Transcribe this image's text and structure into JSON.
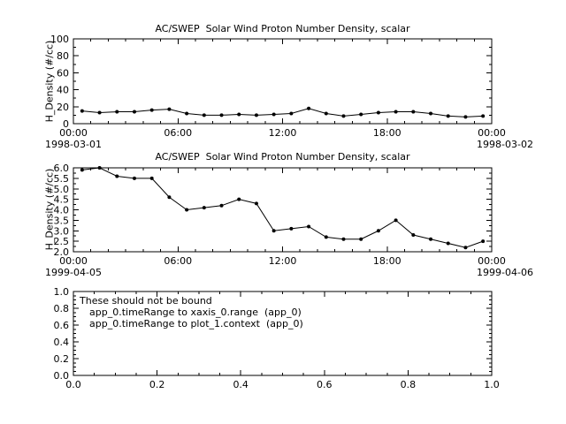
{
  "page": {
    "background": "#ffffff",
    "line_color": "#000000"
  },
  "chart_data": [
    {
      "type": "line",
      "title": "AC/SWEP  Solar Wind Proton Number Density, scalar",
      "ylabel": "H_Density (#/cc)",
      "ylim": [
        0,
        100
      ],
      "yticks": [
        0,
        20,
        40,
        60,
        80,
        100
      ],
      "ytick_labels": [
        "0",
        "20",
        "40",
        "60",
        "80",
        "100"
      ],
      "yminor": 10,
      "xlim": [
        0,
        24
      ],
      "xticks": [
        0,
        6,
        12,
        18,
        24
      ],
      "xtick_labels": [
        "00:00",
        "06:00",
        "12:00",
        "18:00",
        "00:00"
      ],
      "xminor": 1,
      "x_start_date": "1998-03-01",
      "x_end_date": "1998-03-02",
      "marker": "dot",
      "color": "#000000",
      "x": [
        0.5,
        1.5,
        2.5,
        3.5,
        4.5,
        5.5,
        6.5,
        7.5,
        8.5,
        9.5,
        10.5,
        11.5,
        12.5,
        13.5,
        14.5,
        15.5,
        16.5,
        17.5,
        18.5,
        19.5,
        20.5,
        21.5,
        22.5,
        23.5
      ],
      "values": [
        15,
        13,
        14,
        14,
        16,
        17,
        12,
        10,
        10,
        11,
        10,
        11,
        12,
        18,
        12,
        9,
        11,
        13,
        14,
        14,
        12,
        9,
        8,
        9
      ],
      "grid": false,
      "legend": "none"
    },
    {
      "type": "line",
      "title": "AC/SWEP  Solar Wind Proton Number Density, scalar",
      "ylabel": "H_Density (#/cc)",
      "ylim": [
        2.0,
        6.0
      ],
      "yticks": [
        2.0,
        2.5,
        3.0,
        3.5,
        4.0,
        4.5,
        5.0,
        5.5,
        6.0
      ],
      "ytick_labels": [
        "2.0",
        "2.5",
        "3.0",
        "3.5",
        "4.0",
        "4.5",
        "5.0",
        "5.5",
        "6.0"
      ],
      "yminor": 0.25,
      "xlim": [
        0,
        24
      ],
      "xticks": [
        0,
        6,
        12,
        18,
        24
      ],
      "xtick_labels": [
        "00:00",
        "06:00",
        "12:00",
        "18:00",
        "00:00"
      ],
      "xminor": 1,
      "x_start_date": "1999-04-05",
      "x_end_date": "1999-04-06",
      "marker": "dot",
      "color": "#000000",
      "x": [
        0.5,
        1.5,
        2.5,
        3.5,
        4.5,
        5.5,
        6.5,
        7.5,
        8.5,
        9.5,
        10.5,
        11.5,
        12.5,
        13.5,
        14.5,
        15.5,
        16.5,
        17.5,
        18.5,
        19.5,
        20.5,
        21.5,
        22.5,
        23.5
      ],
      "values": [
        5.9,
        6.0,
        5.6,
        5.5,
        5.5,
        4.6,
        4.0,
        4.1,
        4.2,
        4.5,
        4.3,
        3.0,
        3.1,
        3.2,
        2.7,
        2.6,
        2.6,
        3.0,
        3.5,
        2.8,
        2.6,
        2.4,
        2.2,
        2.5
      ],
      "grid": false,
      "legend": "none"
    },
    {
      "type": "empty",
      "title": "",
      "ylabel": "",
      "ylim": [
        0.0,
        1.0
      ],
      "yticks": [
        0.0,
        0.2,
        0.4,
        0.6,
        0.8,
        1.0
      ],
      "ytick_labels": [
        "0.0",
        "0.2",
        "0.4",
        "0.6",
        "0.8",
        "1.0"
      ],
      "yminor": 0.05,
      "xlim": [
        0.0,
        1.0
      ],
      "xticks": [
        0.0,
        0.2,
        0.4,
        0.6,
        0.8,
        1.0
      ],
      "xtick_labels": [
        "0.0",
        "0.2",
        "0.4",
        "0.6",
        "0.8",
        "1.0"
      ],
      "xminor": 0.05,
      "annotations": [
        "These should not be bound",
        "app_0.timeRange to xaxis_0.range  (app_0)",
        "app_0.timeRange to plot_1.context  (app_0)"
      ],
      "grid": false,
      "legend": "none"
    }
  ]
}
